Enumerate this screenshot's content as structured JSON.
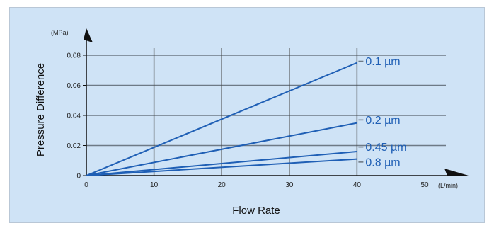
{
  "chart_data": {
    "type": "line",
    "xlabel": "Flow Rate",
    "ylabel": "Pressure Difference",
    "x_unit": "(L/min)",
    "y_unit": "(MPa)",
    "xlim": [
      0,
      50
    ],
    "ylim": [
      0,
      0.08
    ],
    "x_ticks": [
      "0",
      "10",
      "20",
      "30",
      "40",
      "50"
    ],
    "y_ticks": [
      "0",
      "0.02",
      "0.04",
      "0.06",
      "0.08"
    ],
    "grid": true,
    "series": [
      {
        "name": "0.1 µm",
        "x": [
          0,
          40
        ],
        "y": [
          0,
          0.075
        ],
        "label_y": 0.076
      },
      {
        "name": "0.2 µm",
        "x": [
          0,
          40
        ],
        "y": [
          0,
          0.035
        ],
        "label_y": 0.037
      },
      {
        "name": "0.45 µm",
        "x": [
          0,
          40
        ],
        "y": [
          0,
          0.016
        ],
        "label_y": 0.019
      },
      {
        "name": "0.8 µm",
        "x": [
          0,
          40
        ],
        "y": [
          0,
          0.011
        ],
        "label_y": 0.009
      }
    ],
    "colors": {
      "line": "#1f5fb5",
      "grid": "#333333",
      "background": "#cfe3f6",
      "label": "#1f5fb5"
    }
  }
}
